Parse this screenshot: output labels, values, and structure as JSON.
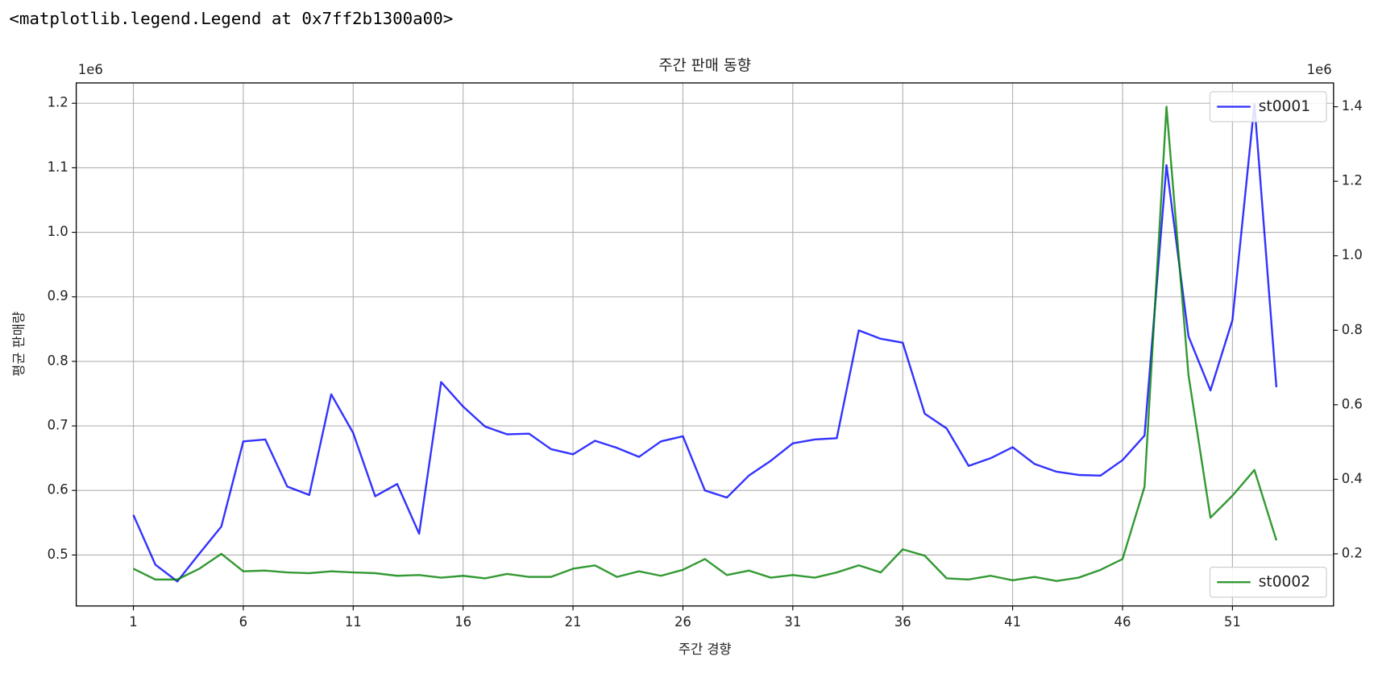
{
  "output_text": "<matplotlib.legend.Legend at 0x7ff2b1300a00>",
  "chart_data": {
    "type": "line",
    "title": "주간 판매 동향",
    "xlabel": "주간 경향",
    "ylabel": "평균 판매량",
    "y_offset_text": "1e6",
    "y2_offset_text": "1e6",
    "x": [
      1,
      2,
      3,
      4,
      5,
      6,
      7,
      8,
      9,
      10,
      11,
      12,
      13,
      14,
      15,
      16,
      17,
      18,
      19,
      20,
      21,
      22,
      23,
      24,
      25,
      26,
      27,
      28,
      29,
      30,
      31,
      32,
      33,
      34,
      35,
      36,
      37,
      38,
      39,
      40,
      41,
      42,
      43,
      44,
      45,
      46,
      47,
      48,
      49,
      50,
      51,
      52,
      53
    ],
    "xlim": [
      -1.6,
      55.6
    ],
    "xticks": [
      1,
      6,
      11,
      16,
      21,
      26,
      31,
      36,
      41,
      46,
      51
    ],
    "ylim": [
      0.421,
      1.2315
    ],
    "yticks": [
      0.5,
      0.6,
      0.7,
      0.8,
      0.9,
      {
        "value": 1.0,
        "label": "1.0"
      },
      1.1,
      1.2
    ],
    "y2lim": [
      0.06,
      1.464
    ],
    "y2ticks": [
      0.2,
      0.4,
      0.6,
      0.8,
      {
        "value": 1.0,
        "label": "1.0"
      },
      1.2,
      1.4
    ],
    "grid": true,
    "series": [
      {
        "name": "st0001",
        "color": "#0000ff",
        "legend_loc": "upper right",
        "values": [
          0.562,
          0.485,
          0.459,
          0.502,
          0.544,
          0.676,
          0.679,
          0.606,
          0.593,
          0.749,
          0.689,
          0.591,
          0.61,
          0.533,
          0.768,
          0.73,
          0.699,
          0.687,
          0.688,
          0.664,
          0.656,
          0.677,
          0.666,
          0.652,
          0.676,
          0.684,
          0.6,
          0.589,
          0.623,
          0.646,
          0.673,
          0.679,
          0.681,
          0.848,
          0.835,
          0.829,
          0.719,
          0.696,
          0.638,
          0.65,
          0.667,
          0.641,
          0.629,
          0.624,
          0.623,
          0.647,
          0.685,
          1.104,
          0.839,
          0.755,
          0.864,
          1.199,
          0.76
        ]
      },
      {
        "name": "st0002",
        "color": "#008000",
        "axis": "y2",
        "legend_loc": "lower right",
        "values": [
          0.16,
          0.131,
          0.131,
          0.16,
          0.2,
          0.153,
          0.155,
          0.15,
          0.148,
          0.153,
          0.15,
          0.148,
          0.141,
          0.143,
          0.136,
          0.141,
          0.134,
          0.146,
          0.138,
          0.138,
          0.16,
          0.169,
          0.138,
          0.153,
          0.141,
          0.157,
          0.186,
          0.143,
          0.155,
          0.136,
          0.143,
          0.136,
          0.15,
          0.169,
          0.15,
          0.212,
          0.195,
          0.134,
          0.131,
          0.141,
          0.129,
          0.138,
          0.127,
          0.136,
          0.157,
          0.186,
          0.38,
          1.4,
          0.68,
          0.297,
          0.356,
          0.425,
          0.236
        ]
      }
    ]
  }
}
